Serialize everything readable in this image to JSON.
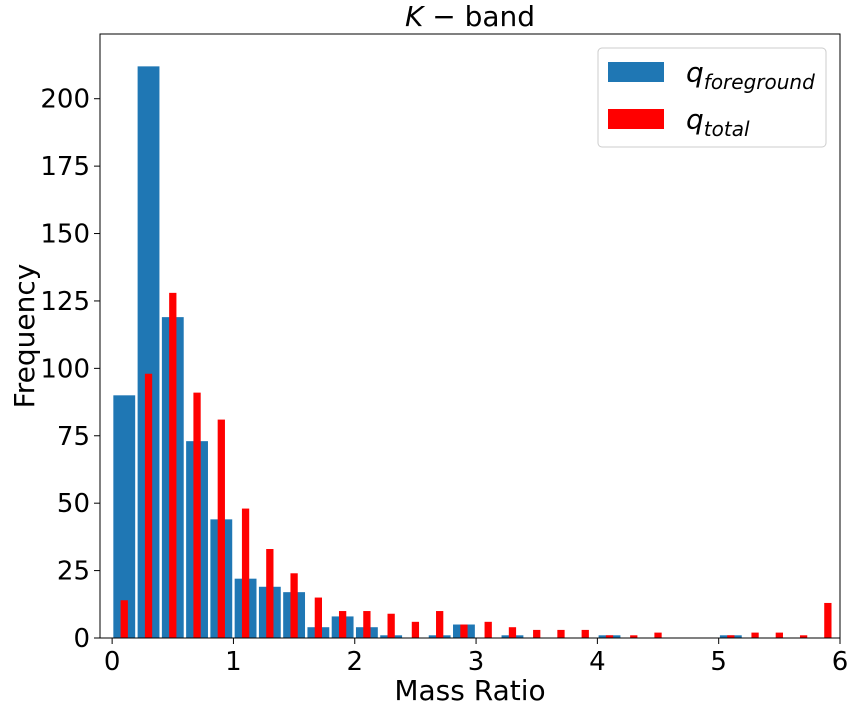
{
  "chart_data": {
    "type": "bar",
    "title_main": "K",
    "title_rest": " − band",
    "xlabel": "Mass Ratio",
    "ylabel": "Frequency",
    "xlim": [
      -0.1,
      6.0
    ],
    "ylim": [
      0,
      224
    ],
    "xticks": [
      0,
      1,
      2,
      3,
      4,
      5,
      6
    ],
    "yticks": [
      0,
      25,
      50,
      75,
      100,
      125,
      150,
      175,
      200
    ],
    "legend_position": "top-right",
    "series": [
      {
        "legend_base": "q",
        "legend_sub": "foreground",
        "color": "#1f77b4",
        "bin_width": 0.2,
        "bar_width": 0.18,
        "x": [
          0.1,
          0.3,
          0.5,
          0.7,
          0.9,
          1.1,
          1.3,
          1.5,
          1.7,
          1.9,
          2.1,
          2.3,
          2.5,
          2.7,
          2.9,
          3.1,
          3.3,
          3.5,
          3.7,
          3.9,
          4.1,
          4.3,
          4.5,
          4.7,
          4.9,
          5.1,
          5.3,
          5.5,
          5.7,
          5.9
        ],
        "values": [
          90,
          212,
          119,
          73,
          44,
          22,
          19,
          17,
          4,
          8,
          4,
          1,
          0,
          1,
          5,
          0,
          1,
          0,
          0,
          0,
          1,
          0,
          0,
          0,
          0,
          1,
          0,
          0,
          0,
          0
        ]
      },
      {
        "legend_base": "q",
        "legend_sub": "total",
        "color": "#ff0000",
        "bin_width": 0.2,
        "bar_width": 0.06,
        "x": [
          0.1,
          0.3,
          0.5,
          0.7,
          0.9,
          1.1,
          1.3,
          1.5,
          1.7,
          1.9,
          2.1,
          2.3,
          2.5,
          2.7,
          2.9,
          3.1,
          3.3,
          3.5,
          3.7,
          3.9,
          4.1,
          4.3,
          4.5,
          4.7,
          4.9,
          5.1,
          5.3,
          5.5,
          5.7,
          5.9
        ],
        "values": [
          14,
          98,
          128,
          91,
          81,
          48,
          33,
          24,
          15,
          10,
          10,
          9,
          6,
          10,
          5,
          6,
          4,
          3,
          3,
          3,
          1,
          1,
          2,
          0,
          0,
          1,
          2,
          2,
          1,
          13
        ]
      }
    ]
  }
}
